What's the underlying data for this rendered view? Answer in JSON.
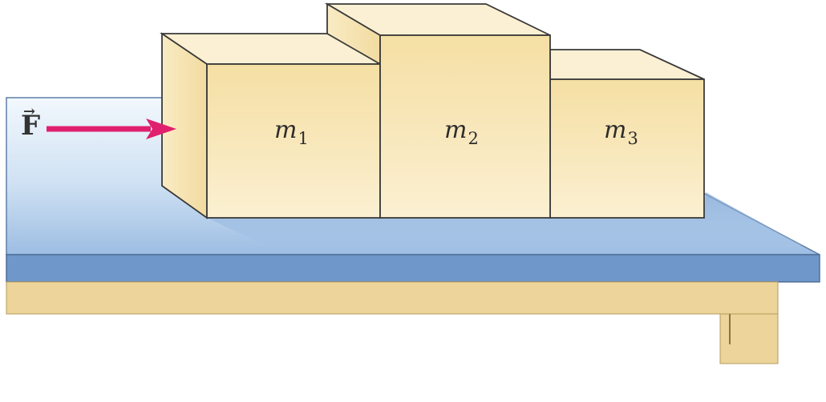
{
  "force": {
    "symbol": "F",
    "vector_mark": "⃗",
    "arrow_color": "#e0206e"
  },
  "masses": [
    {
      "symbol": "m",
      "subscript": "1"
    },
    {
      "symbol": "m",
      "subscript": "2"
    },
    {
      "symbol": "m",
      "subscript": "3"
    }
  ],
  "colors": {
    "block_front": "#f7e4b0",
    "block_top": "#fbefcf",
    "block_side": "#f3dfa8",
    "block_edge": "#3a3a3a",
    "table_top_light": "#eaf3fb",
    "table_top_dark": "#a9c6e6",
    "table_edge": "#6f97c9",
    "table_support": "#ecd49a"
  },
  "icons": {
    "force_arrow": "right-arrow-icon"
  }
}
